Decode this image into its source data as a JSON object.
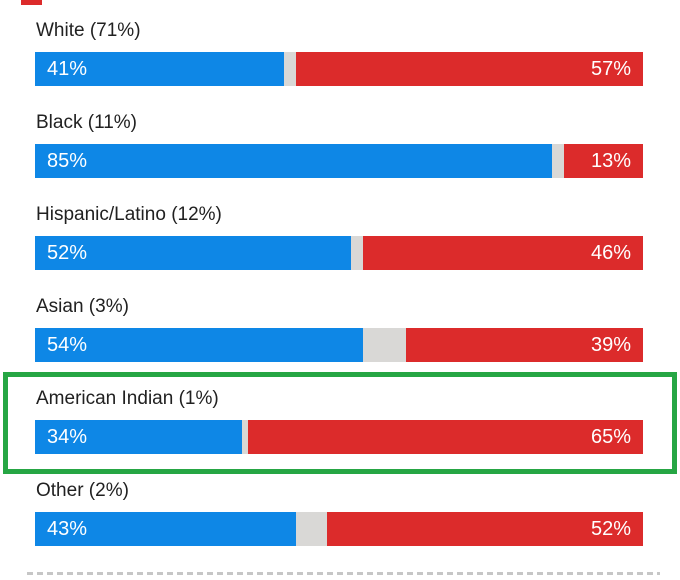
{
  "chart_data": {
    "type": "bar",
    "subtype": "horizontal-stacked",
    "title": "",
    "xlabel": "",
    "ylabel": "",
    "xlim": [
      0,
      100
    ],
    "legend_position": "none",
    "categories": [
      "White (71%)",
      "Black (11%)",
      "Hispanic/Latino (12%)",
      "Asian (3%)",
      "American Indian (1%)",
      "Other (2%)"
    ],
    "series": [
      {
        "name": "blue",
        "color": "#0e87e6",
        "values": [
          41,
          85,
          52,
          54,
          34,
          43
        ]
      },
      {
        "name": "red",
        "color": "#dc2b2b",
        "values": [
          57,
          13,
          46,
          39,
          65,
          52
        ]
      }
    ],
    "highlighted_category": "American Indian (1%)",
    "rows": [
      {
        "label": "White (71%)",
        "blue_pct": 41,
        "red_pct": 57,
        "blue_label": "41%",
        "red_label": "57%"
      },
      {
        "label": "Black (11%)",
        "blue_pct": 85,
        "red_pct": 13,
        "blue_label": "85%",
        "red_label": "13%"
      },
      {
        "label": "Hispanic/Latino (12%)",
        "blue_pct": 52,
        "red_pct": 46,
        "blue_label": "52%",
        "red_label": "46%"
      },
      {
        "label": "Asian (3%)",
        "blue_pct": 54,
        "red_pct": 39,
        "blue_label": "54%",
        "red_label": "39%"
      },
      {
        "label": "American Indian (1%)",
        "blue_pct": 34,
        "red_pct": 65,
        "blue_label": "34%",
        "red_label": "65%",
        "highlighted": true
      },
      {
        "label": "Other (2%)",
        "blue_pct": 43,
        "red_pct": 52,
        "blue_label": "43%",
        "red_label": "52%"
      }
    ],
    "colors": {
      "blue": "#0e87e6",
      "red": "#dc2b2b",
      "gap": "#d9d8d6",
      "highlight": "#26a644",
      "dash": "#c6c6c6",
      "text": "#212121"
    }
  }
}
